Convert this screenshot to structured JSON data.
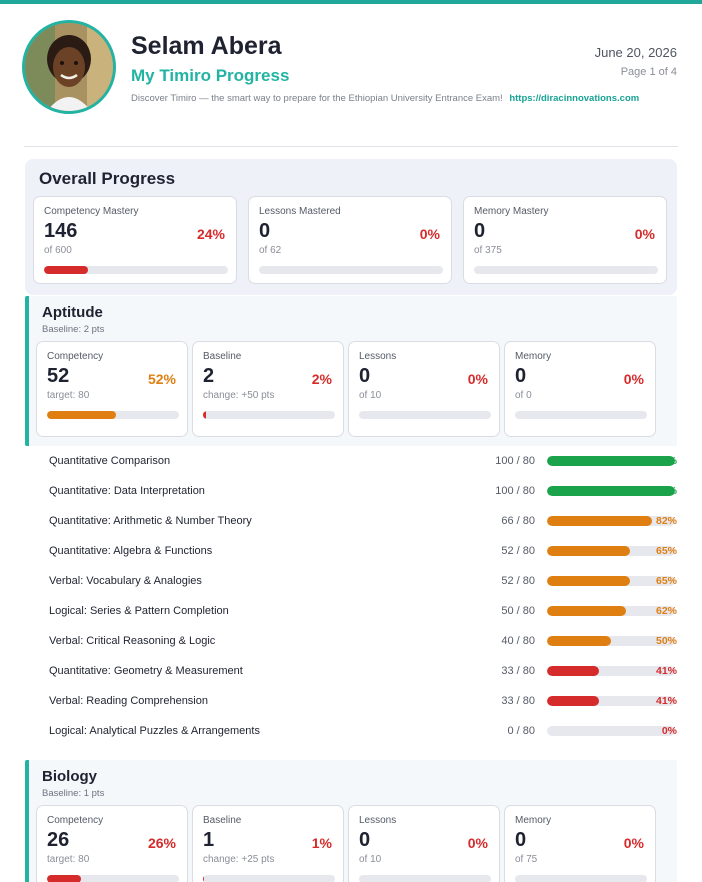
{
  "colors": {
    "accent": "#22b3a3",
    "green": "#1aa34a",
    "orange": "#df7f12",
    "red": "#d62b2b",
    "track": "#e6e8ee"
  },
  "header": {
    "name": "Selam Abera",
    "subtitle": "My Timiro Progress",
    "tagline": "Discover Timiro — the smart way to prepare for the Ethiopian University Entrance Exam!",
    "link": "https://diracinnovations.com",
    "date": "June 20, 2026",
    "page": "Page 1 of 4"
  },
  "overall": {
    "title": "Overall Progress",
    "cards": [
      {
        "label": "Competency Mastery",
        "value": "146",
        "sub": "of 600",
        "pct": "24%",
        "progress": 0.24,
        "color": "red"
      },
      {
        "label": "Lessons Mastered",
        "value": "0",
        "sub": "of 62",
        "pct": "0%",
        "progress": 0,
        "color": "red"
      },
      {
        "label": "Memory Mastery",
        "value": "0",
        "sub": "of 375",
        "pct": "0%",
        "progress": 0,
        "color": "red"
      }
    ]
  },
  "aptitude": {
    "title": "Aptitude",
    "baseline": "Baseline: 2 pts",
    "cards": [
      {
        "label": "Competency",
        "value": "52",
        "sub": "target: 80",
        "pct": "52%",
        "progress": 0.52,
        "color": "orange"
      },
      {
        "label": "Baseline",
        "value": "2",
        "sub": "change: +50 pts",
        "pct": "2%",
        "progress": 0.02,
        "color": "red"
      },
      {
        "label": "Lessons",
        "value": "0",
        "sub": "of 10",
        "pct": "0%",
        "progress": 0,
        "color": "red"
      },
      {
        "label": "Memory",
        "value": "0",
        "sub": "of 0",
        "pct": "0%",
        "progress": 0,
        "color": "red"
      }
    ],
    "topics": [
      {
        "name": "Quantitative Comparison",
        "score": "100 / 80",
        "pct": "%",
        "progress": 1.0,
        "color": "green"
      },
      {
        "name": "Quantitative: Data Interpretation",
        "score": "100 / 80",
        "pct": "%",
        "progress": 1.0,
        "color": "green"
      },
      {
        "name": "Quantitative: Arithmetic & Number Theory",
        "score": "66 / 80",
        "pct": "82%",
        "progress": 0.82,
        "color": "orange"
      },
      {
        "name": "Quantitative: Algebra & Functions",
        "score": "52 / 80",
        "pct": "65%",
        "progress": 0.65,
        "color": "orange"
      },
      {
        "name": "Verbal: Vocabulary & Analogies",
        "score": "52 / 80",
        "pct": "65%",
        "progress": 0.65,
        "color": "orange"
      },
      {
        "name": "Logical: Series & Pattern Completion",
        "score": "50 / 80",
        "pct": "62%",
        "progress": 0.62,
        "color": "orange"
      },
      {
        "name": "Verbal: Critical Reasoning & Logic",
        "score": "40 / 80",
        "pct": "50%",
        "progress": 0.5,
        "color": "orange"
      },
      {
        "name": "Quantitative: Geometry & Measurement",
        "score": "33 / 80",
        "pct": "41%",
        "progress": 0.41,
        "color": "red"
      },
      {
        "name": "Verbal: Reading Comprehension",
        "score": "33 / 80",
        "pct": "41%",
        "progress": 0.41,
        "color": "red"
      },
      {
        "name": "Logical: Analytical Puzzles & Arrangements",
        "score": "0 / 80",
        "pct": "0%",
        "progress": 0,
        "color": "red"
      }
    ]
  },
  "biology": {
    "title": "Biology",
    "baseline": "Baseline: 1 pts",
    "cards": [
      {
        "label": "Competency",
        "value": "26",
        "sub": "target: 80",
        "pct": "26%",
        "progress": 0.26,
        "color": "red"
      },
      {
        "label": "Baseline",
        "value": "1",
        "sub": "change: +25 pts",
        "pct": "1%",
        "progress": 0.01,
        "color": "red"
      },
      {
        "label": "Lessons",
        "value": "0",
        "sub": "of 10",
        "pct": "0%",
        "progress": 0,
        "color": "red"
      },
      {
        "label": "Memory",
        "value": "0",
        "sub": "of 75",
        "pct": "0%",
        "progress": 0,
        "color": "red"
      }
    ]
  }
}
